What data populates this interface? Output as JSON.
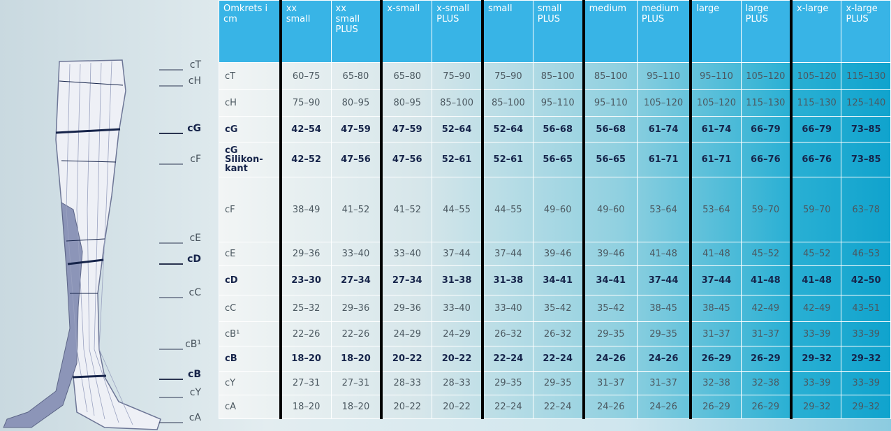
{
  "leg_labels": [
    {
      "label": "cT",
      "bold": false
    },
    {
      "label": "cH",
      "bold": false
    },
    {
      "label": "cG",
      "bold": true
    },
    {
      "label": "cF",
      "bold": false
    },
    {
      "label": "cE",
      "bold": false
    },
    {
      "label": "cD",
      "bold": true
    },
    {
      "label": "cC",
      "bold": false
    },
    {
      "label": "cB¹",
      "bold": false
    },
    {
      "label": "cB",
      "bold": true
    },
    {
      "label": "cY",
      "bold": false
    },
    {
      "label": "cA",
      "bold": false
    }
  ],
  "table": {
    "header": [
      "Omkrets i\ncm",
      "xx\nsmall",
      "xx\nsmall\nPLUS",
      "x-small",
      "x-small\nPLUS",
      "small",
      "small\nPLUS",
      "medium",
      "medium\nPLUS",
      "large",
      "large\nPLUS",
      "x-large",
      "x-large\nPLUS"
    ],
    "rows": [
      {
        "label": "cT",
        "bold": false,
        "cells": [
          "60–75",
          "65-80",
          "65–80",
          "75–90",
          "75–90",
          "85–100",
          "85–100",
          "95–110",
          "95–110",
          "105–120",
          "105–120",
          "115–130"
        ]
      },
      {
        "label": "cH",
        "bold": false,
        "cells": [
          "75–90",
          "80–95",
          "80–95",
          "85–100",
          "85–100",
          "95–110",
          "95–110",
          "105–120",
          "105–120",
          "115–130",
          "115–130",
          "125–140"
        ]
      },
      {
        "label": "cG",
        "bold": true,
        "cells": [
          "42–54",
          "47–59",
          "47–59",
          "52–64",
          "52–64",
          "56–68",
          "56–68",
          "61–74",
          "61–74",
          "66–79",
          "66–79",
          "73–85"
        ]
      },
      {
        "label": "cG\nSilikon-\nkant",
        "bold": true,
        "cells": [
          "42–52",
          "47–56",
          "47–56",
          "52–61",
          "52–61",
          "56–65",
          "56–65",
          "61–71",
          "61–71",
          "66–76",
          "66–76",
          "73–85"
        ]
      },
      {
        "label": "cF",
        "bold": false,
        "cells": [
          "38–49",
          "41–52",
          "41–52",
          "44–55",
          "44–55",
          "49–60",
          "49–60",
          "53–64",
          "53–64",
          "59–70",
          "59–70",
          "63–78"
        ]
      },
      {
        "label": "cE",
        "bold": false,
        "cells": [
          "29–36",
          "33–40",
          "33–40",
          "37–44",
          "37–44",
          "39–46",
          "39–46",
          "41–48",
          "41–48",
          "45–52",
          "45–52",
          "46–53"
        ]
      },
      {
        "label": "cD",
        "bold": true,
        "cells": [
          "23–30",
          "27–34",
          "27–34",
          "31–38",
          "31–38",
          "34–41",
          "34–41",
          "37–44",
          "37–44",
          "41–48",
          "41–48",
          "42–50"
        ]
      },
      {
        "label": "cC",
        "bold": false,
        "cells": [
          "25–32",
          "29–36",
          "29–36",
          "33–40",
          "33–40",
          "35–42",
          "35–42",
          "38–45",
          "38–45",
          "42–49",
          "42–49",
          "43–51"
        ]
      },
      {
        "label": "cB¹",
        "bold": false,
        "cells": [
          "22–26",
          "22–26",
          "24–29",
          "24–29",
          "26–32",
          "26–32",
          "29–35",
          "29–35",
          "31–37",
          "31–37",
          "33–39",
          "33–39"
        ]
      },
      {
        "label": "cB",
        "bold": true,
        "cells": [
          "18–20",
          "18–20",
          "20–22",
          "20–22",
          "22–24",
          "22–24",
          "24–26",
          "24–26",
          "26–29",
          "26–29",
          "29–32",
          "29–32"
        ]
      },
      {
        "label": "cY",
        "bold": false,
        "cells": [
          "27–31",
          "27–31",
          "28–33",
          "28–33",
          "29–35",
          "29–35",
          "31–37",
          "31–37",
          "32–38",
          "32–38",
          "33–39",
          "33–39"
        ]
      },
      {
        "label": "cA",
        "bold": false,
        "cells": [
          "18–20",
          "18–20",
          "20–22",
          "20–22",
          "22–24",
          "22–24",
          "24–26",
          "24–26",
          "26–29",
          "26–29",
          "29–32",
          "29–32"
        ]
      }
    ]
  }
}
